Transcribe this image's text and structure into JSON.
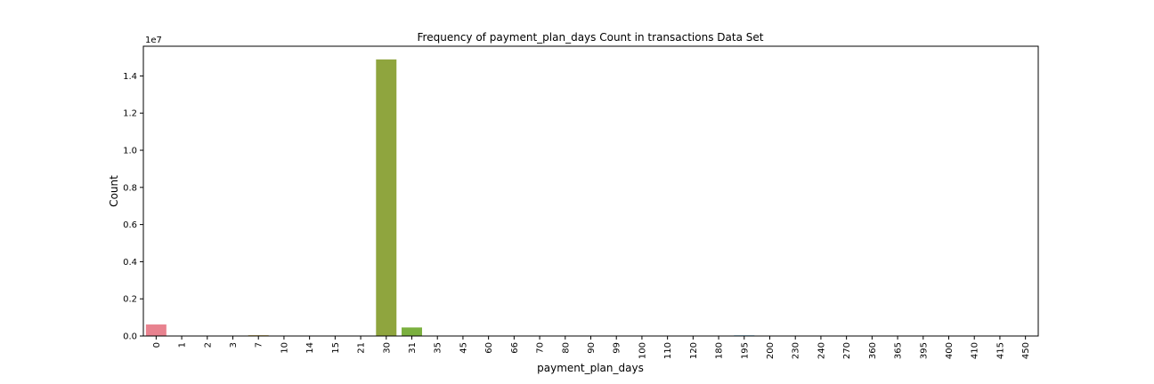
{
  "chart_data": {
    "type": "bar",
    "title": "Frequency of payment_plan_days Count in transactions Data Set",
    "xlabel": "payment_plan_days",
    "ylabel": "Count",
    "y_offset_label": "1e7",
    "ylim": [
      0,
      15600000
    ],
    "yticks": [
      0.0,
      0.2,
      0.4,
      0.6,
      0.8,
      1.0,
      1.2,
      1.4
    ],
    "ytick_labels": [
      "0.0",
      "0.2",
      "0.4",
      "0.6",
      "0.8",
      "1.0",
      "1.2",
      "1.4"
    ],
    "grid": false,
    "categories": [
      "0",
      "1",
      "2",
      "3",
      "7",
      "10",
      "14",
      "15",
      "21",
      "30",
      "31",
      "35",
      "45",
      "60",
      "66",
      "70",
      "80",
      "90",
      "99",
      "100",
      "110",
      "120",
      "180",
      "195",
      "200",
      "230",
      "240",
      "270",
      "360",
      "365",
      "395",
      "400",
      "410",
      "415",
      "450"
    ],
    "values": [
      620000,
      2000,
      1000,
      1000,
      40000,
      3000,
      2000,
      3000,
      2000,
      14890000,
      460000,
      3000,
      3000,
      2000,
      1000,
      2000,
      3000,
      5000,
      1000,
      5000,
      2000,
      2000,
      2000,
      35000,
      3000,
      1000,
      1000,
      1000,
      1000,
      1000,
      1000,
      1000,
      2000,
      1000,
      1000
    ],
    "colors": [
      "#e8828f",
      "#e88a76",
      "#e3925a",
      "#d69a3e",
      "#c3a13c",
      "#b5a63b",
      "#a7a93c",
      "#9bac3c",
      "#8aaf3d",
      "#8fa53e",
      "#7bb03f",
      "#54b449",
      "#3eb55a",
      "#3eb46b",
      "#3fb37a",
      "#40b287",
      "#40b192",
      "#41b09d",
      "#42afa7",
      "#42aeb0",
      "#43adb9",
      "#44acc3",
      "#45aacd",
      "#4aa7d9",
      "#5aa1e3",
      "#6e9ce8",
      "#8a96ea",
      "#a08fea",
      "#b288e8",
      "#c37fe5",
      "#d179e0",
      "#df72d8",
      "#e76fcc",
      "#e974bd",
      "#e87aa8"
    ]
  }
}
